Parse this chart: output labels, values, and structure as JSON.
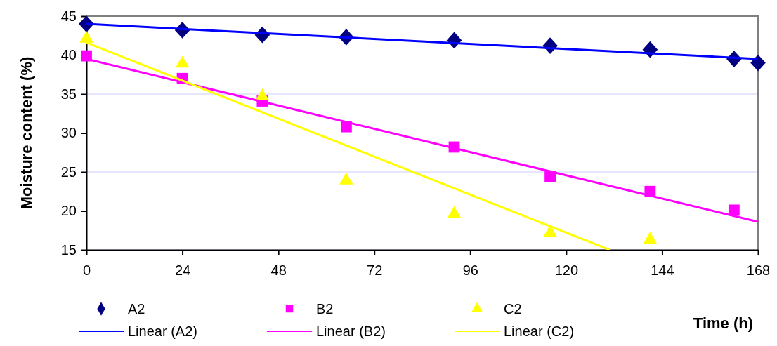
{
  "chart_data": {
    "type": "scatter",
    "xlabel": "Time (h)",
    "ylabel": "Moisture content (%)",
    "xlim": [
      0,
      168
    ],
    "xticks": [
      0,
      24,
      48,
      72,
      96,
      120,
      144,
      168
    ],
    "ylim": [
      15,
      45
    ],
    "yticks": [
      15,
      20,
      25,
      30,
      35,
      40,
      45
    ],
    "grid": "y",
    "legend": "bottom",
    "series": [
      {
        "name": "A2",
        "marker": "diamond",
        "color": "#000080",
        "x": [
          0,
          24,
          44,
          65,
          92,
          116,
          141,
          162,
          168
        ],
        "values": [
          44.0,
          43.2,
          42.6,
          42.3,
          41.9,
          41.2,
          40.7,
          39.5,
          39.0
        ]
      },
      {
        "name": "B2",
        "marker": "square",
        "color": "#ff00ff",
        "x": [
          0,
          24,
          44,
          65,
          92,
          116,
          141,
          162
        ],
        "values": [
          39.9,
          37.0,
          34.1,
          30.8,
          28.2,
          24.4,
          22.5,
          20.1
        ]
      },
      {
        "name": "C2",
        "marker": "triangle",
        "color": "#ffff00",
        "x": [
          0,
          24,
          44,
          65,
          92,
          116,
          141
        ],
        "values": [
          42.1,
          38.9,
          34.7,
          23.9,
          19.6,
          17.2,
          16.3
        ]
      },
      {
        "name": "Linear (A2)",
        "type": "line",
        "marker": "none",
        "line_style": "solid",
        "color": "#0000ff",
        "x": [
          0,
          168
        ],
        "values": [
          44.0,
          39.5
        ]
      },
      {
        "name": "Linear (B2)",
        "type": "line",
        "marker": "none",
        "line_style": "solid",
        "color": "#ff00ff",
        "x": [
          0,
          168
        ],
        "values": [
          39.5,
          18.6
        ]
      },
      {
        "name": "Linear (C2)",
        "type": "line",
        "marker": "none",
        "line_style": "solid",
        "color": "#ffff00",
        "x": [
          0,
          130.9
        ],
        "values": [
          41.6,
          15
        ]
      }
    ]
  }
}
